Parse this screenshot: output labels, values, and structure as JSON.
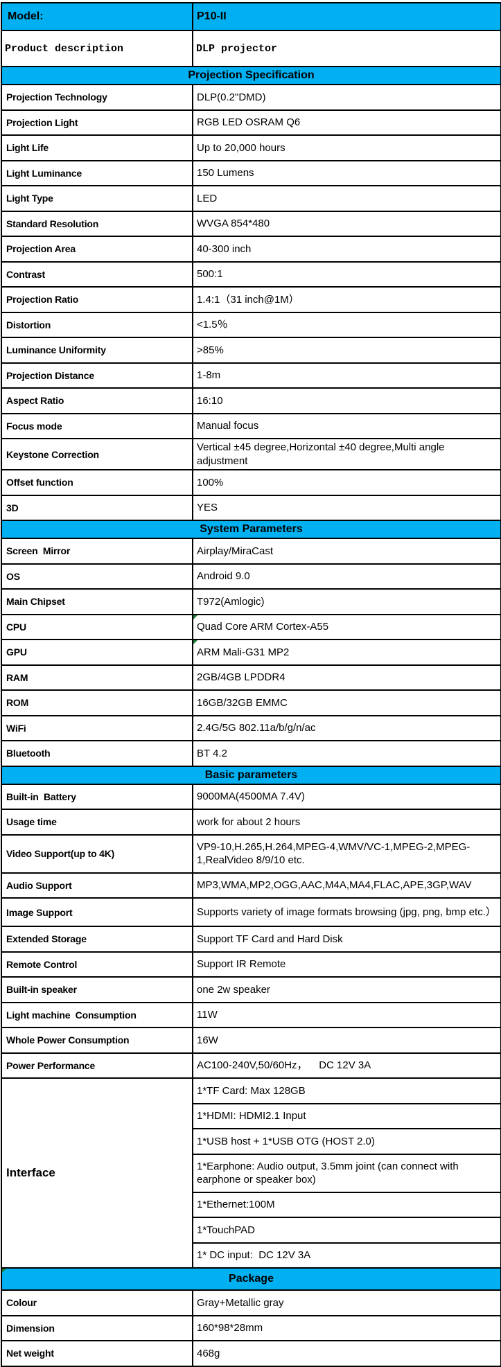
{
  "colors": {
    "accent": "#00b0f0",
    "marker_green": "#1f7d34",
    "border": "#000000"
  },
  "model_row": {
    "label": "Model:",
    "value": "P10-II"
  },
  "product_row": {
    "label": "Product description",
    "value": "DLP projector"
  },
  "sections": [
    {
      "title": "Projection Specification",
      "rows": [
        {
          "label": "Projection Technology",
          "value": "DLP(0.2\"DMD)"
        },
        {
          "label": "Projection Light",
          "value": "RGB LED OSRAM Q6"
        },
        {
          "label": "Light Life",
          "value": "Up to 20,000 hours"
        },
        {
          "label": "Light Luminance",
          "value": "150 Lumens"
        },
        {
          "label": "Light Type",
          "value": "LED"
        },
        {
          "label": "Standard Resolution",
          "value": "WVGA 854*480"
        },
        {
          "label": "Projection Area",
          "value": "40-300 inch"
        },
        {
          "label": "Contrast",
          "value": "500:1"
        },
        {
          "label": "Projection Ratio",
          "value": "1.4:1（31 inch@1M）"
        },
        {
          "label": "Distortion",
          "value": "<1.5％"
        },
        {
          "label": "Luminance Uniformity",
          "value": ">85%"
        },
        {
          "label": "Projection Distance",
          "value": "1-8m"
        },
        {
          "label": "Aspect Ratio",
          "value": "16:10"
        },
        {
          "label": "Focus mode",
          "value": "Manual focus"
        },
        {
          "label": "Keystone Correction",
          "value": "Vertical ±45 degree,Horizontal ±40 degree,Multi angle adjustment"
        },
        {
          "label": "Offset function",
          "value": "100%"
        },
        {
          "label": "3D",
          "value": "YES"
        }
      ]
    },
    {
      "title": "System Parameters",
      "rows": [
        {
          "label": "Screen  Mirror",
          "value": "Airplay/MiraCast"
        },
        {
          "label": "OS",
          "value": "Android 9.0"
        },
        {
          "label": "Main Chipset",
          "value": "T972(Amlogic)"
        },
        {
          "label": "CPU",
          "value": "Quad Core ARM Cortex-A55",
          "marker": true
        },
        {
          "label": "GPU",
          "value": "ARM Mali-G31 MP2",
          "marker": true
        },
        {
          "label": "RAM",
          "value": "2GB/4GB LPDDR4"
        },
        {
          "label": "ROM",
          "value": "16GB/32GB EMMC"
        },
        {
          "label": "WiFi",
          "value": "2.4G/5G 802.11a/b/g/n/ac"
        },
        {
          "label": "Bluetooth",
          "value": "BT 4.2"
        }
      ]
    },
    {
      "title": "Basic parameters",
      "rows": [
        {
          "label": "Built-in  Battery",
          "value": "9000MA(4500MA 7.4V)"
        },
        {
          "label": "Usage time",
          "value": "work for about 2 hours"
        },
        {
          "label": "Video Support(up to 4K)",
          "value": "VP9-10,H.265,H.264,MPEG-4,WMV/VC-1,MPEG-2,MPEG-1,RealVideo 8/9/10 etc.",
          "size": "tall"
        },
        {
          "label": "Audio Support",
          "value": "MP3,WMA,MP2,OGG,AAC,M4A,MA4,FLAC,APE,3GP,WAV"
        },
        {
          "label": "Image Support",
          "value": "Supports variety of image formats browsing (jpg, png, bmp etc.）",
          "size": "mid"
        },
        {
          "label": "Extended Storage",
          "value": "Support TF Card and Hard Disk"
        },
        {
          "label": "Remote Control",
          "value": "Support IR Remote"
        },
        {
          "label": "Built-in speaker",
          "value": "one 2w speaker"
        },
        {
          "label": "Light machine  Consumption",
          "value": "11W"
        },
        {
          "label": "Whole Power Consumption",
          "value": "16W"
        },
        {
          "label": "Power Performance",
          "value": "AC100-240V,50/60Hz，    DC 12V 3A"
        }
      ],
      "interface_group": {
        "label": "Interface",
        "items": [
          {
            "value": "1*TF Card: Max 128GB"
          },
          {
            "value": "1*HDMI: HDMI2.1 Input"
          },
          {
            "value": "1*USB host + 1*USB OTG (HOST 2.0)"
          },
          {
            "value": "1*Earphone: Audio output, 3.5mm joint (can connect with earphone or speaker box)",
            "size": "tall"
          },
          {
            "value": "1*Ethernet:100M"
          },
          {
            "value": "1*TouchPAD"
          },
          {
            "value": "1* DC input:  DC 12V 3A"
          }
        ]
      }
    },
    {
      "title": "Package",
      "size": "sec-big",
      "marker": true,
      "rows": [
        {
          "label": "Colour",
          "value": "Gray+Metallic gray"
        },
        {
          "label": "Dimension",
          "value": "160*98*28mm"
        },
        {
          "label": "Net weight",
          "value": "468g"
        }
      ]
    }
  ]
}
